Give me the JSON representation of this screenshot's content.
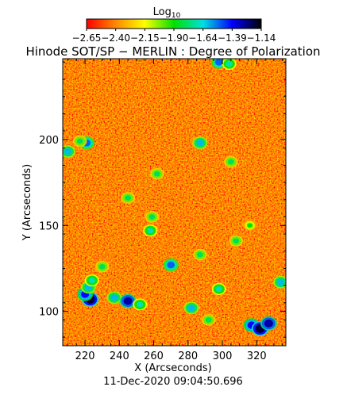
{
  "colorbar": {
    "label_base": "Log",
    "label_sub": "10",
    "ticks": [
      "−2.65",
      "−2.40",
      "−2.15",
      "−1.90",
      "−1.64",
      "−1.39",
      "−1.14"
    ],
    "value_range": [
      -2.65,
      -1.14
    ],
    "stops": [
      "#ff0000",
      "#ff8800",
      "#ffff00",
      "#00e000",
      "#00e0e0",
      "#0000ff",
      "#000000"
    ]
  },
  "title": "Hinode SOT/SP − MERLIN : Degree of Polarization",
  "timestamp": "11-Dec-2020 09:04:50.696",
  "chart_data": {
    "type": "heatmap",
    "xlabel": "X (Arcseconds)",
    "ylabel": "Y (Arcseconds)",
    "xlim": [
      207,
      337
    ],
    "ylim": [
      80,
      247
    ],
    "x_ticks": [
      220,
      240,
      260,
      280,
      300,
      320
    ],
    "y_ticks": [
      100,
      150,
      200
    ],
    "x_tick_labels": [
      "220",
      "240",
      "260",
      "280",
      "300",
      "320"
    ],
    "y_tick_labels": [
      "100",
      "150",
      "200"
    ],
    "background_level": -2.55,
    "features": [
      {
        "x": 223,
        "y": 107,
        "level": -1.2
      },
      {
        "x": 220,
        "y": 110,
        "level": -1.4
      },
      {
        "x": 222,
        "y": 114,
        "level": -1.6
      },
      {
        "x": 224,
        "y": 118,
        "level": -1.7
      },
      {
        "x": 237,
        "y": 108,
        "level": -1.6
      },
      {
        "x": 245,
        "y": 106,
        "level": -1.3
      },
      {
        "x": 252,
        "y": 104,
        "level": -1.7
      },
      {
        "x": 270,
        "y": 127,
        "level": -1.5
      },
      {
        "x": 258,
        "y": 147,
        "level": -1.7
      },
      {
        "x": 259,
        "y": 155,
        "level": -1.8
      },
      {
        "x": 245,
        "y": 166,
        "level": -1.8
      },
      {
        "x": 262,
        "y": 180,
        "level": -1.8
      },
      {
        "x": 210,
        "y": 193,
        "level": -1.6
      },
      {
        "x": 221,
        "y": 198,
        "level": -1.5
      },
      {
        "x": 217,
        "y": 199,
        "level": -1.8
      },
      {
        "x": 287,
        "y": 198,
        "level": -1.6
      },
      {
        "x": 305,
        "y": 187,
        "level": -1.8
      },
      {
        "x": 308,
        "y": 141,
        "level": -1.8
      },
      {
        "x": 287,
        "y": 133,
        "level": -1.8
      },
      {
        "x": 282,
        "y": 102,
        "level": -1.6
      },
      {
        "x": 298,
        "y": 113,
        "level": -1.7
      },
      {
        "x": 317,
        "y": 92,
        "level": -1.4
      },
      {
        "x": 322,
        "y": 90,
        "level": -1.2
      },
      {
        "x": 327,
        "y": 93,
        "level": -1.3
      },
      {
        "x": 334,
        "y": 117,
        "level": -1.6
      },
      {
        "x": 292,
        "y": 95,
        "level": -1.8
      },
      {
        "x": 298,
        "y": 245,
        "level": -1.5
      },
      {
        "x": 304,
        "y": 244,
        "level": -1.7
      },
      {
        "x": 230,
        "y": 126,
        "level": -1.8
      },
      {
        "x": 316,
        "y": 150,
        "level": -1.9
      }
    ]
  }
}
